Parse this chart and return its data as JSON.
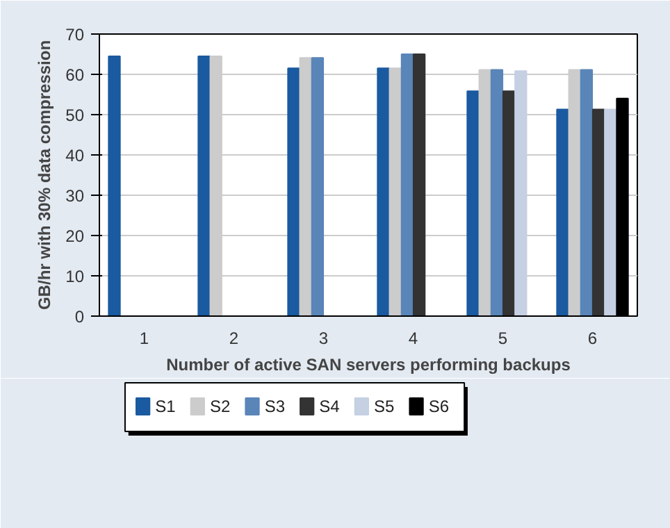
{
  "chart_data": {
    "type": "bar",
    "xlabel": "Number of active SAN servers performing backups",
    "ylabel": "GB/hr with 30% data compression",
    "categories": [
      "1",
      "2",
      "3",
      "4",
      "5",
      "6"
    ],
    "series": [
      {
        "name": "S1",
        "color": "#1a5aa0",
        "values": [
          64.5,
          64.5,
          61.5,
          61.5,
          55.8,
          51.3
        ]
      },
      {
        "name": "S2",
        "color": "#cccccc",
        "values": [
          null,
          64.5,
          64.1,
          61.5,
          61.1,
          61.1
        ]
      },
      {
        "name": "S3",
        "color": "#5a85b8",
        "values": [
          null,
          null,
          64.1,
          65,
          61.1,
          61.1
        ]
      },
      {
        "name": "S4",
        "color": "#333333",
        "values": [
          null,
          null,
          null,
          65,
          55.8,
          51.3
        ]
      },
      {
        "name": "S5",
        "color": "#c5d0e3",
        "values": [
          null,
          null,
          null,
          null,
          60.8,
          51.3
        ]
      },
      {
        "name": "S6",
        "color": "#000000",
        "values": [
          null,
          null,
          null,
          null,
          null,
          54
        ]
      }
    ],
    "ylim": [
      0,
      70
    ],
    "yticks": [
      0,
      10,
      20,
      30,
      40,
      50,
      60,
      70
    ],
    "grid": "y",
    "legend": "bottom"
  }
}
